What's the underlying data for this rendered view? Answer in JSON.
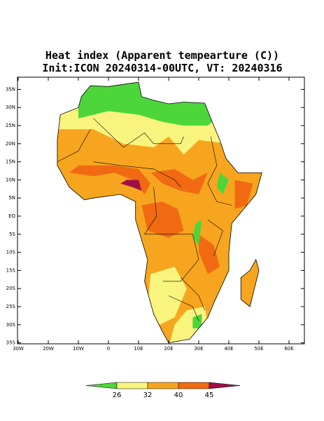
{
  "map": {
    "title": "Heat index (Apparent tempearture (C))",
    "subtitle": "Init:ICON 20240314-00UTC, VT: 20240316",
    "lat_ticks": [
      {
        "value": 35,
        "label": "35N"
      },
      {
        "value": 30,
        "label": "30N"
      },
      {
        "value": 25,
        "label": "25N"
      },
      {
        "value": 20,
        "label": "20N"
      },
      {
        "value": 15,
        "label": "15N"
      },
      {
        "value": 10,
        "label": "10N"
      },
      {
        "value": 5,
        "label": "5N"
      },
      {
        "value": 0,
        "label": "EQ"
      },
      {
        "value": -5,
        "label": "5S"
      },
      {
        "value": -10,
        "label": "10S"
      },
      {
        "value": -15,
        "label": "15S"
      },
      {
        "value": -20,
        "label": "20S"
      },
      {
        "value": -25,
        "label": "25S"
      },
      {
        "value": -30,
        "label": "30S"
      },
      {
        "value": -35,
        "label": "35S"
      }
    ],
    "lon_ticks": [
      {
        "value": -30,
        "label": "30W"
      },
      {
        "value": -20,
        "label": "20W"
      },
      {
        "value": -10,
        "label": "10W"
      },
      {
        "value": 0,
        "label": "0"
      },
      {
        "value": 10,
        "label": "10E"
      },
      {
        "value": 20,
        "label": "20E"
      },
      {
        "value": 30,
        "label": "30E"
      },
      {
        "value": 40,
        "label": "40E"
      },
      {
        "value": 50,
        "label": "50E"
      },
      {
        "value": 60,
        "label": "60E"
      }
    ],
    "colorbar": {
      "boundaries": [
        26,
        32,
        40,
        45
      ],
      "colors": [
        "#4cd63a",
        "#f9f47e",
        "#f7a51e",
        "#f16a12",
        "#9e0f4a"
      ]
    }
  }
}
